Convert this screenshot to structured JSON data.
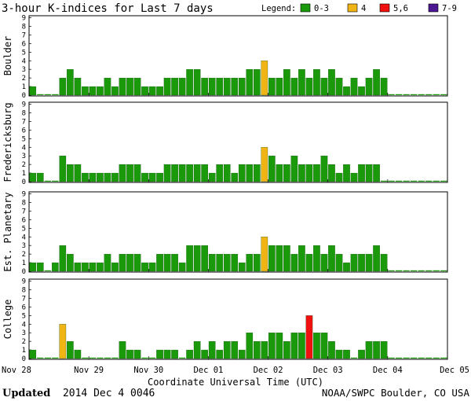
{
  "title": "3-hour K-indices for Last 7 days",
  "legend": {
    "label": "Legend:",
    "items": [
      {
        "label": "0-3",
        "color": "#1a9a0a"
      },
      {
        "label": "4",
        "color": "#f0b414"
      },
      {
        "label": "5,6",
        "color": "#f01010"
      },
      {
        "label": "7-9",
        "color": "#4b1690"
      }
    ]
  },
  "footer": {
    "updated_label": "Updated",
    "updated_value": "2014 Dec  4 0046",
    "credit": "NOAA/SWPC Boulder, CO USA"
  },
  "chart_data": {
    "type": "bar",
    "xlabel": "Coordinate Universal Time (UTC)",
    "x_ticks": [
      "Nov 28",
      "Nov 29",
      "Nov 30",
      "Dec 01",
      "Dec 02",
      "Dec 03",
      "Dec 04",
      "Dec 05"
    ],
    "y_ticks": [
      "0",
      "1",
      "2",
      "3",
      "4",
      "5",
      "6",
      "7",
      "8",
      "9"
    ],
    "ylim": [
      0,
      9
    ],
    "bars_per_day": 8,
    "grid": false,
    "panels": [
      {
        "station": "Boulder",
        "values": [
          1,
          0,
          0,
          0,
          2,
          3,
          2,
          1,
          1,
          1,
          2,
          1,
          2,
          2,
          2,
          1,
          1,
          1,
          2,
          2,
          2,
          3,
          3,
          2,
          2,
          2,
          2,
          2,
          2,
          3,
          3,
          4,
          2,
          2,
          3,
          2,
          3,
          2,
          3,
          2,
          3,
          2,
          1,
          2,
          1,
          2,
          3,
          2,
          0,
          0,
          0,
          0,
          0,
          0,
          0,
          0
        ]
      },
      {
        "station": "Fredericksburg",
        "values": [
          1,
          1,
          0,
          0,
          3,
          2,
          2,
          1,
          1,
          1,
          1,
          1,
          2,
          2,
          2,
          1,
          1,
          1,
          2,
          2,
          2,
          2,
          2,
          2,
          1,
          2,
          2,
          1,
          2,
          2,
          2,
          4,
          3,
          2,
          2,
          3,
          2,
          2,
          2,
          3,
          2,
          1,
          2,
          1,
          2,
          2,
          2,
          0,
          0,
          0,
          0,
          0,
          0,
          0,
          0,
          0
        ]
      },
      {
        "station": "Est. Planetary",
        "values": [
          1,
          1,
          0,
          1,
          3,
          2,
          1,
          1,
          1,
          1,
          2,
          1,
          2,
          2,
          2,
          1,
          1,
          2,
          2,
          2,
          1,
          3,
          3,
          3,
          2,
          2,
          2,
          2,
          1,
          2,
          2,
          4,
          3,
          3,
          3,
          2,
          3,
          2,
          3,
          2,
          3,
          2,
          1,
          2,
          2,
          2,
          3,
          2,
          0,
          0,
          0,
          0,
          0,
          0,
          0,
          0
        ]
      },
      {
        "station": "College",
        "values": [
          1,
          0,
          0,
          0,
          4,
          2,
          1,
          0,
          0,
          0,
          0,
          0,
          2,
          1,
          1,
          0,
          0,
          1,
          1,
          1,
          0,
          1,
          2,
          1,
          2,
          1,
          2,
          2,
          1,
          3,
          2,
          2,
          3,
          3,
          2,
          3,
          3,
          5,
          3,
          3,
          2,
          1,
          1,
          0,
          1,
          2,
          2,
          2,
          0,
          0,
          0,
          0,
          0,
          0,
          0,
          0
        ]
      }
    ]
  }
}
